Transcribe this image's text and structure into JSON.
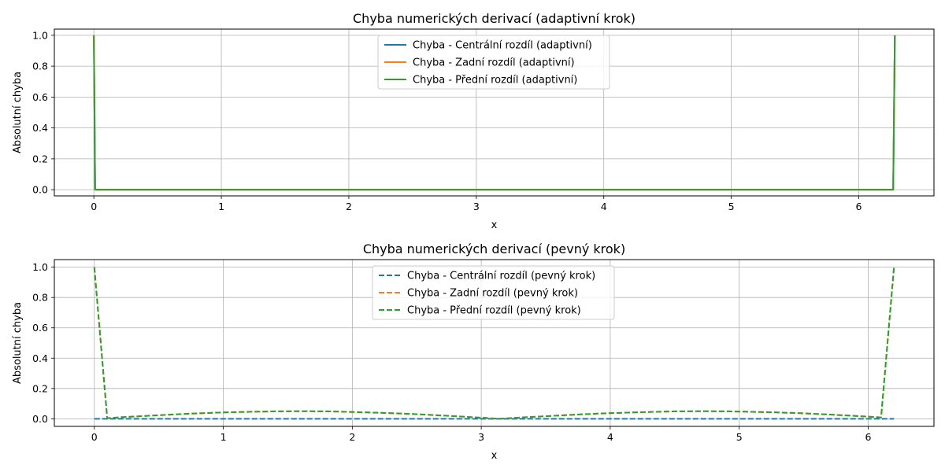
{
  "chart_data": [
    {
      "type": "line",
      "title": "Chyba numerických derivací (adaptivní krok)",
      "xlabel": "x",
      "ylabel": "Absolutní chyba",
      "xlim": [
        -0.31,
        6.59
      ],
      "ylim": [
        -0.04,
        1.04
      ],
      "xticks": [
        0,
        1,
        2,
        3,
        4,
        5,
        6
      ],
      "yticks": [
        0.0,
        0.2,
        0.4,
        0.6,
        0.8,
        1.0
      ],
      "xtick_labels": [
        "0",
        "1",
        "2",
        "3",
        "4",
        "5",
        "6"
      ],
      "ytick_labels": [
        "0.0",
        "0.2",
        "0.4",
        "0.6",
        "0.8",
        "1.0"
      ],
      "grid": true,
      "legend_position": "upper center",
      "series": [
        {
          "name": "Chyba - Centrální rozdíl (adaptivní)",
          "color": "#1f77b4",
          "style": "solid",
          "x": [
            0,
            0.01,
            0.5,
            1,
            2,
            3,
            4,
            5,
            6,
            6.27,
            6.283
          ],
          "y": [
            1.0,
            0.0,
            0.0,
            0.0,
            0.0,
            0.0,
            0.0,
            0.0,
            0.0,
            0.0,
            1.0
          ]
        },
        {
          "name": "Chyba - Zadní rozdíl (adaptivní)",
          "color": "#ff7f0e",
          "style": "solid",
          "x": [
            0,
            0.01,
            0.5,
            1,
            2,
            3,
            4,
            5,
            6,
            6.27,
            6.283
          ],
          "y": [
            1.0,
            0.0,
            0.0,
            0.0,
            0.0,
            0.0,
            0.0,
            0.0,
            0.0,
            0.0,
            1.0
          ]
        },
        {
          "name": "Chyba - Přední rozdíl (adaptivní)",
          "color": "#2ca02c",
          "style": "solid",
          "x": [
            0,
            0.01,
            0.5,
            1,
            2,
            3,
            4,
            5,
            6,
            6.27,
            6.283
          ],
          "y": [
            1.0,
            0.0,
            0.0,
            0.0,
            0.0,
            0.0,
            0.0,
            0.0,
            0.0,
            0.0,
            1.0
          ]
        }
      ]
    },
    {
      "type": "line",
      "title": "Chyba numerických derivací (pevný krok)",
      "xlabel": "x",
      "ylabel": "Absolutní chyba",
      "xlim": [
        -0.31,
        6.51
      ],
      "ylim": [
        -0.05,
        1.05
      ],
      "xticks": [
        0,
        1,
        2,
        3,
        4,
        5,
        6
      ],
      "yticks": [
        0.0,
        0.2,
        0.4,
        0.6,
        0.8,
        1.0
      ],
      "xtick_labels": [
        "0",
        "1",
        "2",
        "3",
        "4",
        "5",
        "6"
      ],
      "ytick_labels": [
        "0.0",
        "0.2",
        "0.4",
        "0.6",
        "0.8",
        "1.0"
      ],
      "grid": true,
      "legend_position": "upper center",
      "series": [
        {
          "name": "Chyba - Centrální rozdíl (pevný krok)",
          "color": "#1f77b4",
          "style": "dashed",
          "x": [
            0,
            0.1,
            0.6,
            1.1,
            1.6,
            2.1,
            2.6,
            3.1,
            3.6,
            4.1,
            4.6,
            5.1,
            5.6,
            6.1,
            6.2
          ],
          "y": [
            0.0,
            0.0,
            0.0,
            0.0,
            0.0,
            0.0,
            0.0,
            0.0,
            0.0,
            0.0,
            0.0,
            0.0,
            0.0,
            0.0,
            0.0
          ]
        },
        {
          "name": "Chyba - Zadní rozdíl (pevný krok)",
          "color": "#ff7f0e",
          "style": "dashed",
          "x": [
            0,
            0.1,
            0.2,
            0.4,
            0.6,
            0.8,
            1.0,
            1.2,
            1.4,
            1.6,
            1.8,
            2.0,
            2.2,
            2.4,
            2.6,
            2.8,
            3.0,
            3.14,
            3.3,
            3.5,
            3.7,
            3.9,
            4.1,
            4.3,
            4.5,
            4.7,
            4.9,
            5.1,
            5.3,
            5.5,
            5.7,
            5.9,
            6.1,
            6.2
          ],
          "y": [
            1.0,
            0.004,
            0.01,
            0.019,
            0.028,
            0.036,
            0.042,
            0.046,
            0.049,
            0.05,
            0.049,
            0.045,
            0.04,
            0.034,
            0.026,
            0.017,
            0.007,
            0.0,
            0.008,
            0.017,
            0.026,
            0.034,
            0.04,
            0.045,
            0.049,
            0.05,
            0.049,
            0.046,
            0.042,
            0.036,
            0.028,
            0.019,
            0.009,
            1.0
          ]
        },
        {
          "name": "Chyba - Přední rozdíl (pevný krok)",
          "color": "#2ca02c",
          "style": "dashed",
          "x": [
            0,
            0.1,
            0.2,
            0.4,
            0.6,
            0.8,
            1.0,
            1.2,
            1.4,
            1.6,
            1.8,
            2.0,
            2.2,
            2.4,
            2.6,
            2.8,
            3.0,
            3.14,
            3.3,
            3.5,
            3.7,
            3.9,
            4.1,
            4.3,
            4.5,
            4.7,
            4.9,
            5.1,
            5.3,
            5.5,
            5.7,
            5.9,
            6.1,
            6.2
          ],
          "y": [
            1.0,
            0.004,
            0.01,
            0.019,
            0.028,
            0.036,
            0.042,
            0.046,
            0.049,
            0.05,
            0.049,
            0.045,
            0.04,
            0.034,
            0.026,
            0.017,
            0.007,
            0.0,
            0.008,
            0.017,
            0.026,
            0.034,
            0.04,
            0.045,
            0.049,
            0.05,
            0.049,
            0.046,
            0.042,
            0.036,
            0.028,
            0.019,
            0.009,
            1.0
          ]
        }
      ]
    }
  ]
}
